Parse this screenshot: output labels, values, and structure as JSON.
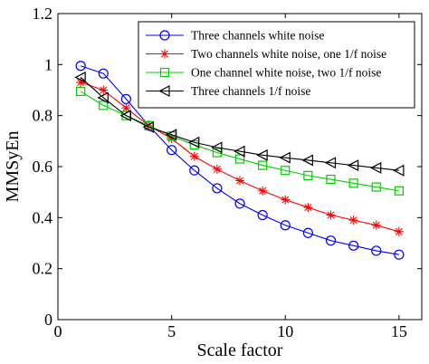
{
  "chart_data": {
    "type": "line",
    "xlabel": "Scale factor",
    "ylabel": "MMSyEn",
    "xlim": [
      0,
      16
    ],
    "ylim": [
      0,
      1.2
    ],
    "xticks": [
      0,
      5,
      10,
      15
    ],
    "yticks": [
      0,
      0.2,
      0.4,
      0.6,
      0.8,
      1,
      1.2
    ],
    "xtick_labels": [
      "0",
      "5",
      "10",
      "15"
    ],
    "ytick_labels": [
      "0",
      "0.2",
      "0.4",
      "0.6",
      "0.8",
      "1",
      "1.2"
    ],
    "grid": false,
    "legend_position": "top-right",
    "x": [
      1,
      2,
      3,
      4,
      5,
      6,
      7,
      8,
      9,
      10,
      11,
      12,
      13,
      14,
      15
    ],
    "series": [
      {
        "name": "Three channels white noise",
        "color": "#0000ff",
        "marker": "circle",
        "values": [
          0.995,
          0.965,
          0.865,
          0.76,
          0.665,
          0.585,
          0.515,
          0.455,
          0.41,
          0.37,
          0.34,
          0.31,
          0.29,
          0.27,
          0.255
        ]
      },
      {
        "name": "Two channels white noise, one 1/f noise",
        "color": "#ff0000",
        "marker": "star",
        "values": [
          0.93,
          0.9,
          0.83,
          0.76,
          0.71,
          0.64,
          0.59,
          0.545,
          0.505,
          0.47,
          0.44,
          0.41,
          0.39,
          0.37,
          0.345
        ]
      },
      {
        "name": "One channel white noise, two 1/f noise",
        "color": "#00cc00",
        "marker": "square",
        "values": [
          0.895,
          0.84,
          0.8,
          0.76,
          0.72,
          0.685,
          0.655,
          0.63,
          0.605,
          0.585,
          0.565,
          0.55,
          0.535,
          0.52,
          0.505
        ]
      },
      {
        "name": "Three channels 1/f noise",
        "color": "#000000",
        "marker": "triangle-left",
        "values": [
          0.95,
          0.87,
          0.8,
          0.755,
          0.725,
          0.695,
          0.675,
          0.66,
          0.645,
          0.635,
          0.625,
          0.615,
          0.605,
          0.595,
          0.585
        ]
      }
    ]
  }
}
